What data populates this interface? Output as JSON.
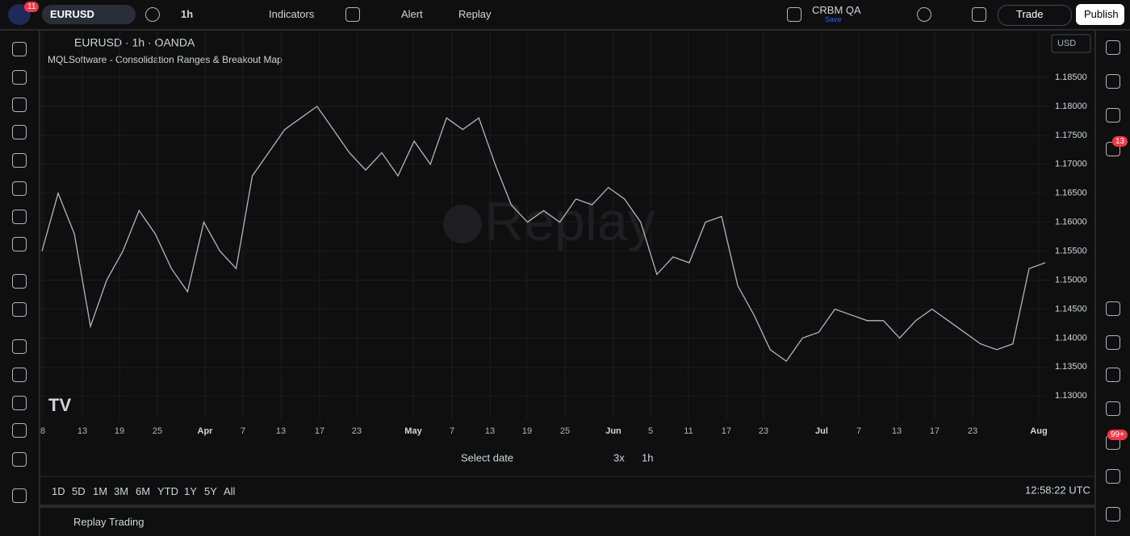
{
  "toolbar": {
    "badge": "11",
    "symbol": "EURUSD",
    "interval": "1h",
    "indicators": "Indicators",
    "alert": "Alert",
    "replay": "Replay",
    "layout_name": "CRBM QA",
    "save": "Save",
    "trade": "Trade",
    "publish": "Publish"
  },
  "legend": {
    "symbol_line": "EURUSD · 1h · OANDA",
    "indicator": "MQLSoftware - Consolidation Ranges & Breakout Map",
    "currency": "USD",
    "watermark": "Replay"
  },
  "sidebar": {
    "alerts_badge": "13",
    "notifications_badge": "99+"
  },
  "replay_bar": {
    "select_date": "Select date",
    "speed": "3x",
    "interval": "1h"
  },
  "bottom_bar": {
    "ranges": [
      "1D",
      "5D",
      "1M",
      "3M",
      "6M",
      "YTD",
      "1Y",
      "5Y",
      "All"
    ],
    "clock": "12:58:22 UTC"
  },
  "panel": {
    "title": "Replay Trading"
  },
  "chart_data": {
    "type": "line",
    "color": "#b2b5be",
    "ylim": [
      1.126,
      1.1928
    ],
    "yticks": [
      {
        "value": 1.185,
        "label": "1.18500"
      },
      {
        "value": 1.18,
        "label": "1.18000"
      },
      {
        "value": 1.175,
        "label": "1.17500"
      },
      {
        "value": 1.17,
        "label": "1.17000"
      },
      {
        "value": 1.165,
        "label": "1.16500"
      },
      {
        "value": 1.16,
        "label": "1.16000"
      },
      {
        "value": 1.155,
        "label": "1.15500"
      },
      {
        "value": 1.15,
        "label": "1.15000"
      },
      {
        "value": 1.145,
        "label": "1.14500"
      },
      {
        "value": 1.14,
        "label": "1.14000"
      },
      {
        "value": 1.135,
        "label": "1.13500"
      },
      {
        "value": 1.13,
        "label": "1.13000"
      }
    ],
    "x_axis_labels": [
      "8",
      "13",
      "19",
      "25",
      "Apr",
      "7",
      "13",
      "17",
      "23",
      "May",
      "7",
      "13",
      "19",
      "25",
      "Jun",
      "5",
      "11",
      "17",
      "23",
      "Jul",
      "7",
      "13",
      "17",
      "23",
      "Aug"
    ],
    "values": [
      1.155,
      1.165,
      1.158,
      1.142,
      1.15,
      1.155,
      1.162,
      1.158,
      1.152,
      1.148,
      1.16,
      1.155,
      1.152,
      1.168,
      1.172,
      1.176,
      1.178,
      1.18,
      1.176,
      1.172,
      1.169,
      1.172,
      1.168,
      1.174,
      1.17,
      1.178,
      1.176,
      1.178,
      1.17,
      1.163,
      1.16,
      1.162,
      1.16,
      1.164,
      1.163,
      1.166,
      1.164,
      1.16,
      1.151,
      1.154,
      1.153,
      1.16,
      1.161,
      1.149,
      1.144,
      1.138,
      1.136,
      1.14,
      1.141,
      1.145,
      1.144,
      1.143,
      1.143,
      1.14,
      1.143,
      1.145,
      1.143,
      1.141,
      1.139,
      1.138,
      1.139,
      1.152,
      1.153
    ],
    "grid": true
  }
}
